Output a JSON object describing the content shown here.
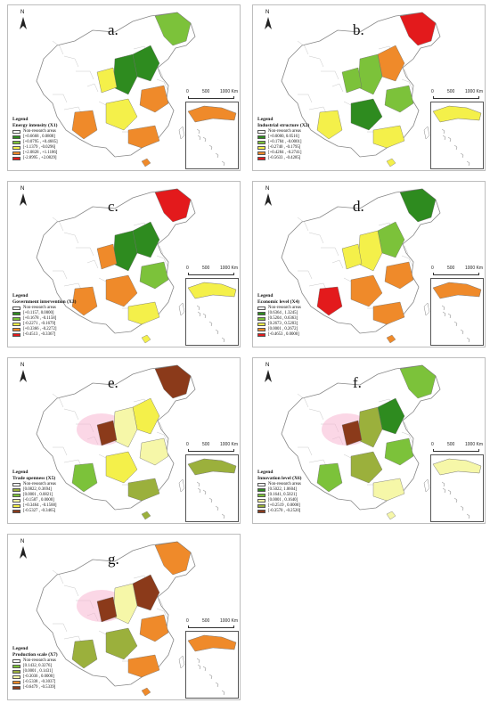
{
  "colors": {
    "green_dark": "#2e8b1f",
    "green_mid": "#7cc23a",
    "yellow": "#f4f04a",
    "orange": "#ef8a2a",
    "red": "#e31a1c",
    "brown": "#8b3a1a",
    "olive": "#9bb03c",
    "light_yellow": "#f6f7a8",
    "pink_highlight": "#f7b6d2",
    "outline": "#888888",
    "white": "#ffffff"
  },
  "common": {
    "north": "N",
    "scale_0": "0",
    "scale_500": "500",
    "scale_1000": "1000 Km",
    "legend_title": "Legend",
    "non_research": "Non-research areas"
  },
  "panels": [
    {
      "label": "a.",
      "legend_name": "Energy intensity (X1)",
      "classes": [
        "[+0.6668 , 0.0808]",
        "[+0.0795 , +0.4685]",
        "[-1.1379 , -0.0296]",
        "[+2.0828 , +1.1186]",
        "[-2.8995 , +2.0829]"
      ],
      "class_colors": [
        "green_dark",
        "green_mid",
        "yellow",
        "orange",
        "red"
      ]
    },
    {
      "label": "b.",
      "legend_name": "Industrial structure (X2)",
      "classes": [
        "[+0.0000, 0.0516]",
        "[+0.1784 , -0.0001]",
        "[-0.2740 , -0.1795]",
        "[+0.4284 , -0.2741]",
        "[-0.5633 , -0.4285]"
      ],
      "class_colors": [
        "green_dark",
        "green_mid",
        "yellow",
        "orange",
        "red"
      ]
    },
    {
      "label": "c.",
      "legend_name": "Government intervention (X3)",
      "classes": [
        "[+0.1157, 0.0000]",
        "[+0.1678 , -0.1158]",
        "[-0.2271 , -0.1679]",
        "[+0.3366 , -0.2272]",
        "[-0.4513 , -0.3367]"
      ],
      "class_colors": [
        "green_dark",
        "green_mid",
        "yellow",
        "orange",
        "red"
      ]
    },
    {
      "label": "d.",
      "legend_name": "Economic level (X4)",
      "classes": [
        "[0.6364 , 1.3245]",
        "[0.5204 , 0.6363]",
        "[0.2673 , 0.5203]",
        "[0.0001 , 0.2672]",
        "[-0.4653 , 0.0000]"
      ],
      "class_colors": [
        "green_dark",
        "green_mid",
        "yellow",
        "orange",
        "red"
      ]
    },
    {
      "label": "e.",
      "legend_name": "Trade openness (X5)",
      "classes": [
        "[0.0822, 0.3694]",
        "[0.0001 , 0.0821]",
        "[-0.1587 , 0.0000]",
        "[+0.3464 , -0.1588]",
        "[-0.5327 , -0.3465]"
      ],
      "class_colors": [
        "olive",
        "green_mid",
        "light_yellow",
        "yellow",
        "brown"
      ]
    },
    {
      "label": "f.",
      "legend_name": "Innovation level (X6)",
      "classes": [
        "[0.5022, 1.0604]",
        "[0.1641, 0.5021]",
        "[0.0001 , 0.1640]",
        "[+0.2519 , 0.0000]",
        "[-0.3570 , -0.2520]"
      ],
      "class_colors": [
        "green_dark",
        "green_mid",
        "light_yellow",
        "olive",
        "brown"
      ]
    },
    {
      "label": "g.",
      "legend_name": "Production scale (X7)",
      "classes": [
        "[0.1432, 0.3276]",
        "[0.0001 , 0.1431]",
        "[-0.3036 , 0.0000]",
        "[-0.5338 , -0.3037]",
        "[-0.6479 , -0.5339]"
      ],
      "class_colors": [
        "green_mid",
        "olive",
        "light_yellow",
        "orange",
        "brown"
      ]
    }
  ]
}
